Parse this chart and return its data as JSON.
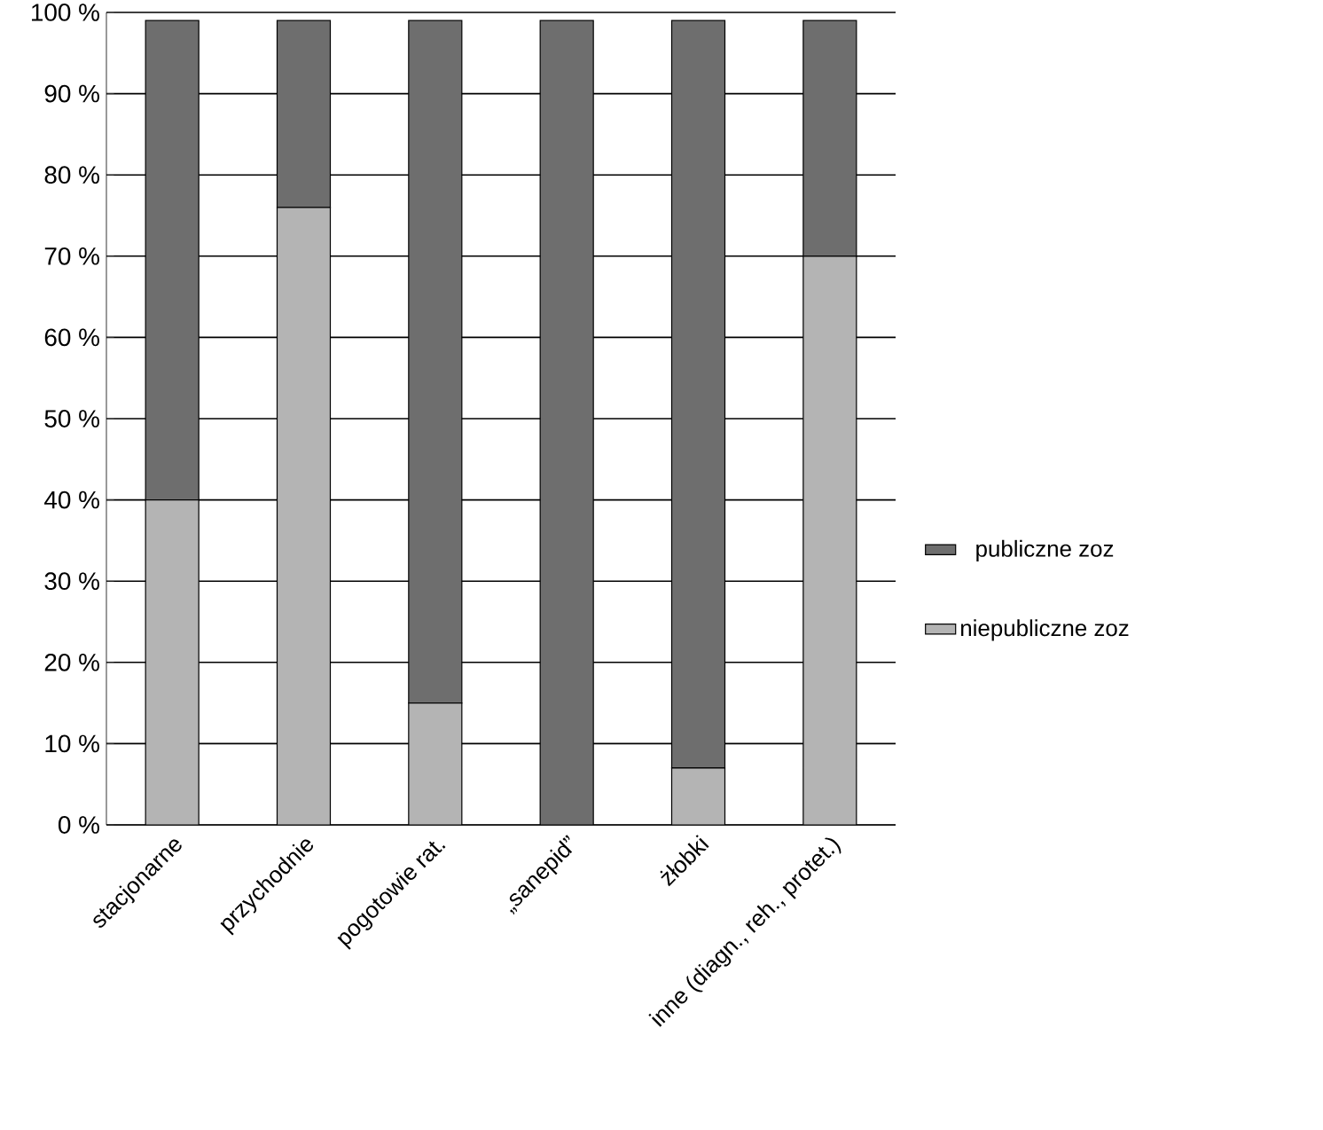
{
  "chart_data": {
    "type": "bar",
    "stacked": true,
    "categories": [
      "stacjonarne",
      "przychodnie",
      "pogotowie rat.",
      "„sanepid”",
      "żłobki",
      "inne (diagn., reh., protet.)"
    ],
    "series": [
      {
        "name": "niepubliczne zoz",
        "color": "#b4b4b4",
        "values": [
          40,
          76,
          15,
          0,
          7,
          70
        ]
      },
      {
        "name": "publiczne zoz",
        "color": "#6e6e6e",
        "values": [
          59,
          23,
          84,
          99,
          92,
          29
        ]
      }
    ],
    "ylim": [
      0,
      100
    ],
    "yticks": [
      {
        "value": 0,
        "label": "0 %"
      },
      {
        "value": 10,
        "label": "10 %"
      },
      {
        "value": 20,
        "label": "20 %"
      },
      {
        "value": 30,
        "label": "30 %"
      },
      {
        "value": 40,
        "label": "40 %"
      },
      {
        "value": 50,
        "label": "50 %"
      },
      {
        "value": 60,
        "label": "60 %"
      },
      {
        "value": 70,
        "label": "70 %"
      },
      {
        "value": 80,
        "label": "80 %"
      },
      {
        "value": 90,
        "label": "90 %"
      },
      {
        "value": 100,
        "label": "100 %"
      }
    ],
    "grid": "y",
    "legend": "right"
  }
}
